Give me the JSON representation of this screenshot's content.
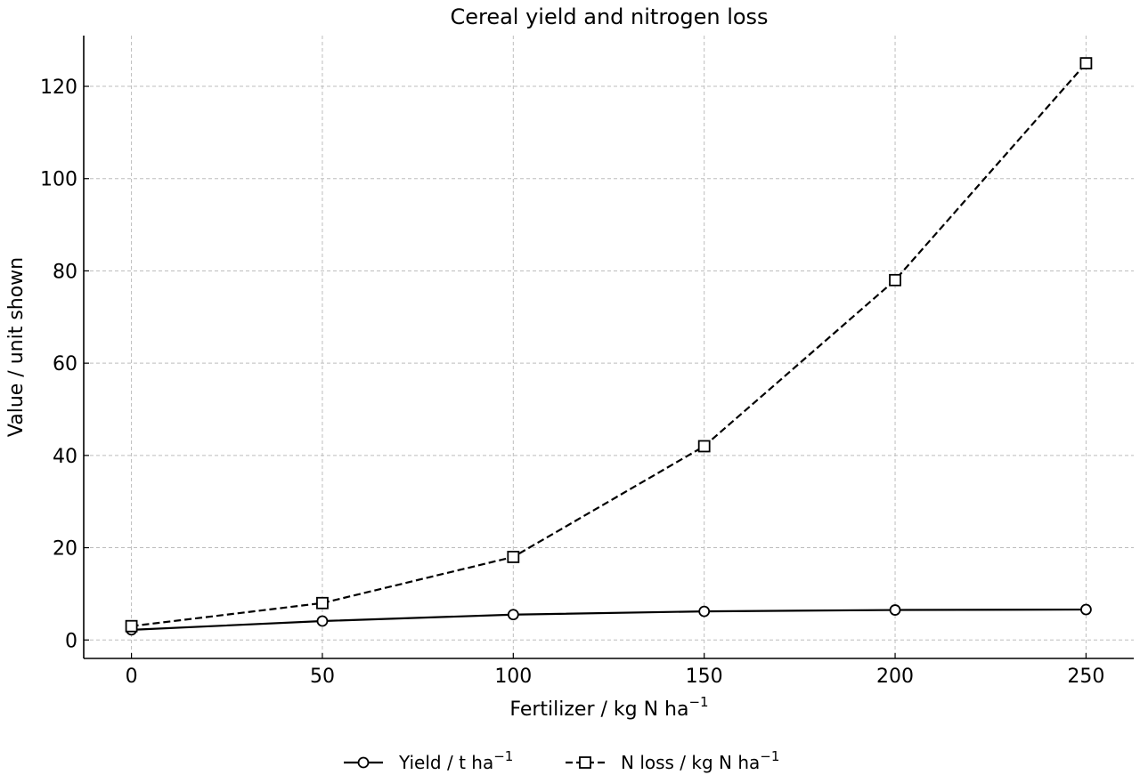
{
  "chart_data": {
    "type": "line",
    "title": "Cereal yield and nitrogen loss",
    "xlabel": {
      "base": "Fertilizer / kg N ha",
      "sup": "−1"
    },
    "ylabel": "Value / unit shown",
    "x": [
      0,
      50,
      100,
      150,
      200,
      250
    ],
    "xlim": [
      -12.5,
      262.5
    ],
    "ylim": [
      -4,
      131
    ],
    "xticks": [
      0,
      50,
      100,
      150,
      200,
      250
    ],
    "yticks": [
      0,
      20,
      40,
      60,
      80,
      100,
      120
    ],
    "grid": true,
    "legend_position": "bottom-center",
    "series": [
      {
        "name": {
          "base": "Yield / t ha",
          "sup": "−1"
        },
        "values": [
          2.2,
          4.1,
          5.5,
          6.2,
          6.5,
          6.6
        ],
        "line_style": "solid",
        "marker": "circle",
        "color": "#000000"
      },
      {
        "name": {
          "base": "N loss / kg N ha",
          "sup": "−1"
        },
        "values": [
          3,
          8,
          18,
          42,
          78,
          125
        ],
        "line_style": "dashed",
        "marker": "square",
        "color": "#000000"
      }
    ]
  }
}
